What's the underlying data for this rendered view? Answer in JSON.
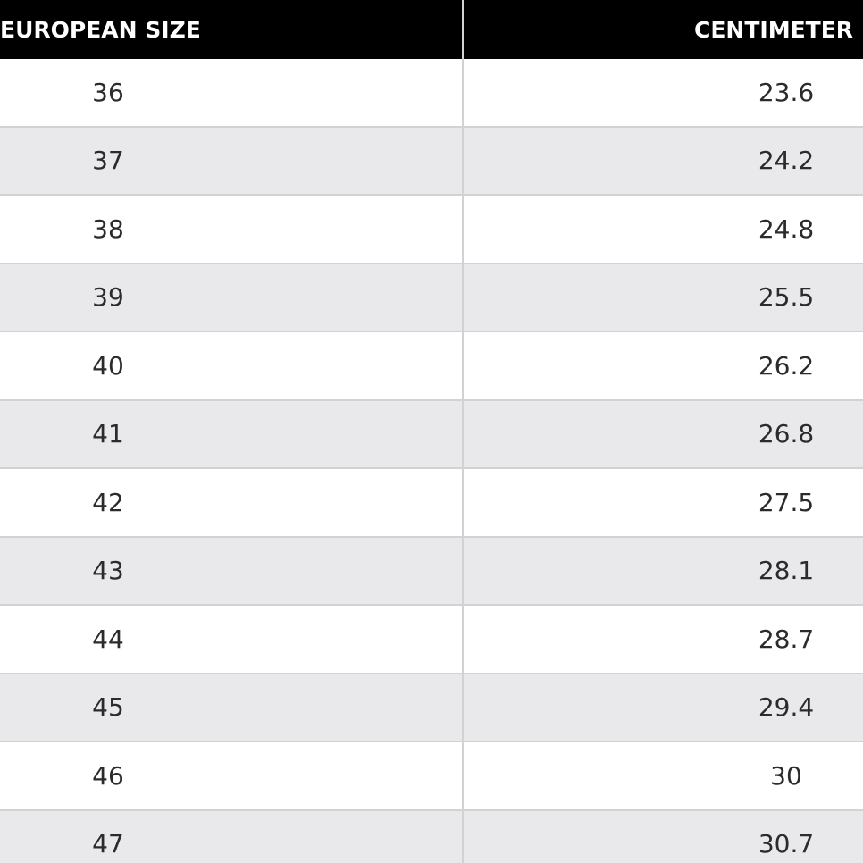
{
  "table": {
    "header": [
      "EUROPEAN SIZE",
      "CENTIMETER"
    ],
    "rows": [
      [
        "36",
        "23.6"
      ],
      [
        "37",
        "24.2"
      ],
      [
        "38",
        "24.8"
      ],
      [
        "39",
        "25.5"
      ],
      [
        "40",
        "26.2"
      ],
      [
        "41",
        "26.8"
      ],
      [
        "42",
        "27.5"
      ],
      [
        "43",
        "28.1"
      ],
      [
        "44",
        "28.7"
      ],
      [
        "45",
        "29.4"
      ],
      [
        "46",
        "30"
      ],
      [
        "47",
        "30.7"
      ]
    ]
  }
}
